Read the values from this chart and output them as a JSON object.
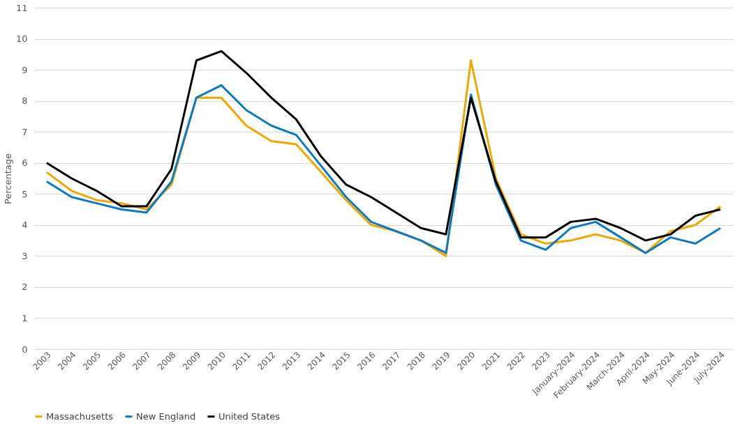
{
  "chart_data": {
    "type": "line",
    "ylabel": "Percentage",
    "categories": [
      "2003",
      "2004",
      "2005",
      "2006",
      "2007",
      "2008",
      "2009",
      "2010",
      "2011",
      "2012",
      "2013",
      "2014",
      "2015",
      "2016",
      "2017",
      "2018",
      "2019",
      "2020",
      "2021",
      "2022",
      "2023",
      "January-2024",
      "February-2024",
      "March-2024",
      "April-2024",
      "May-2024",
      "June-2024",
      "July-2024"
    ],
    "series": [
      {
        "name": "Massachusetts",
        "color": "#f0a800",
        "values": [
          5.7,
          5.1,
          4.8,
          4.7,
          4.5,
          5.3,
          8.1,
          8.1,
          7.2,
          6.7,
          6.6,
          5.7,
          4.8,
          4.0,
          3.8,
          3.5,
          3.0,
          9.3,
          5.5,
          3.7,
          3.4,
          3.5,
          3.7,
          3.5,
          3.1,
          3.8,
          4.0,
          4.6
        ]
      },
      {
        "name": "New England",
        "color": "#0b7bc1",
        "values": [
          5.4,
          4.9,
          4.7,
          4.5,
          4.4,
          5.4,
          8.1,
          8.5,
          7.7,
          7.2,
          6.9,
          5.9,
          4.9,
          4.1,
          3.8,
          3.5,
          3.1,
          8.2,
          5.3,
          3.5,
          3.2,
          3.9,
          4.1,
          3.6,
          3.1,
          3.6,
          3.4,
          3.9
        ]
      },
      {
        "name": "United States",
        "color": "#000000",
        "values": [
          6.0,
          5.5,
          5.1,
          4.6,
          4.6,
          5.8,
          9.3,
          9.6,
          8.9,
          8.1,
          7.4,
          6.2,
          5.3,
          4.9,
          4.4,
          3.9,
          3.7,
          8.1,
          5.4,
          3.6,
          3.6,
          4.1,
          4.2,
          3.9,
          3.5,
          3.7,
          4.3,
          4.5
        ]
      }
    ],
    "ylim": [
      0,
      11
    ],
    "yticks": [
      0,
      1,
      2,
      3,
      4,
      5,
      6,
      7,
      8,
      9,
      10,
      11
    ],
    "grid": "y",
    "legend": "bottom",
    "marker": "none",
    "line_style": "solid"
  }
}
